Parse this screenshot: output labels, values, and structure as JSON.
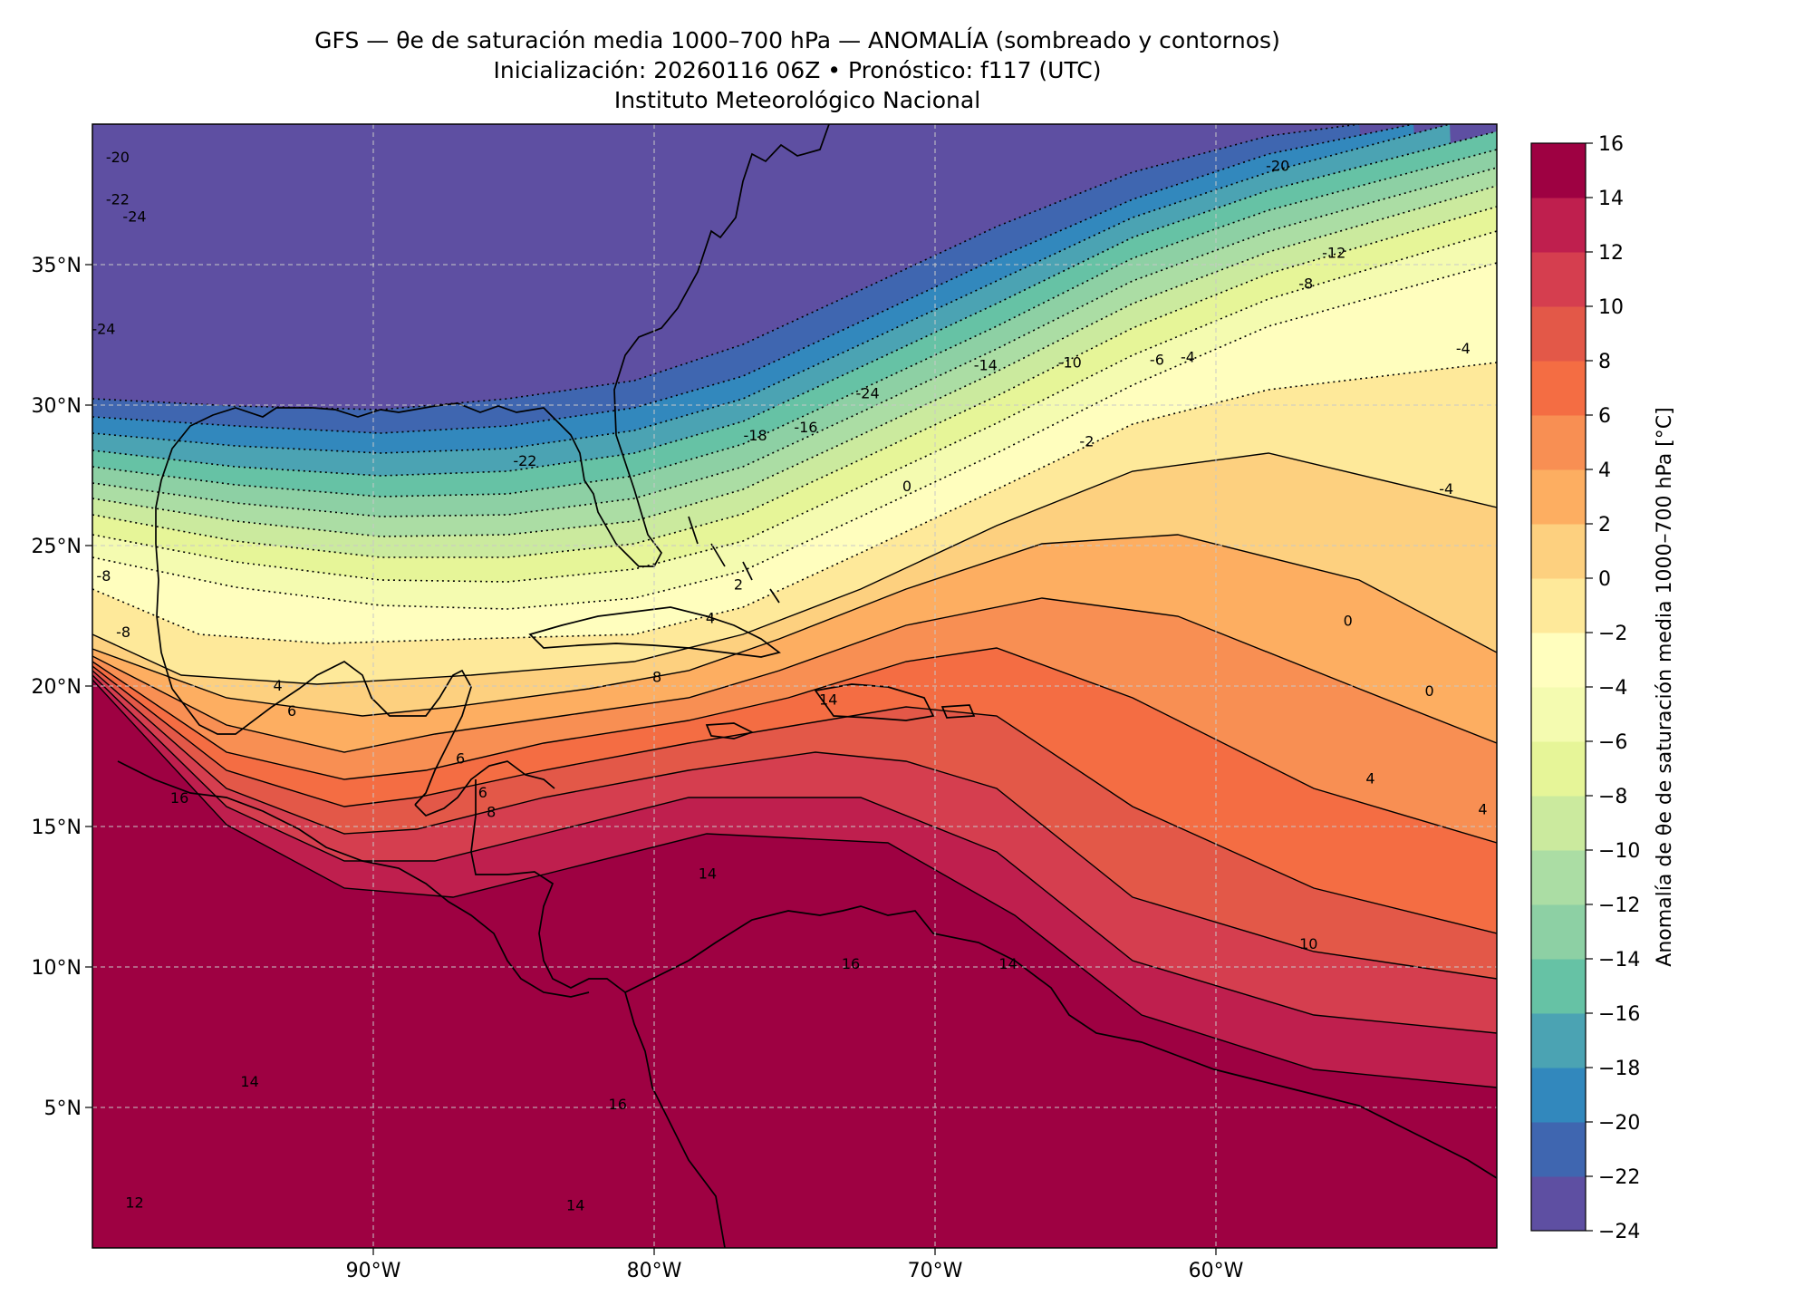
{
  "title": {
    "line1": "GFS — θe de saturación media 1000–700 hPa — ANOMALÍA (sombreado y contornos)",
    "line2": "Inicialización: 20260116 06Z   •   Pronóstico: f117 (UTC)",
    "line3": "Instituto Meteorológico Nacional"
  },
  "map": {
    "lon_range": [
      -100,
      -50
    ],
    "lat_range": [
      0,
      40
    ],
    "lon_ticks": [
      {
        "value": -90,
        "label": "90°W"
      },
      {
        "value": -80,
        "label": "80°W"
      },
      {
        "value": -70,
        "label": "70°W"
      },
      {
        "value": -60,
        "label": "60°W"
      }
    ],
    "lat_ticks": [
      {
        "value": 35,
        "label": "35°N"
      },
      {
        "value": 30,
        "label": "30°N"
      },
      {
        "value": 25,
        "label": "25°N"
      },
      {
        "value": 20,
        "label": "20°N"
      },
      {
        "value": 15,
        "label": "15°N"
      },
      {
        "value": 10,
        "label": "10°N"
      },
      {
        "value": 5,
        "label": "5°N"
      }
    ],
    "gridlines": true
  },
  "colorbar": {
    "label": "Anomalía de θe de saturación media 1000–700 hPa [°C]",
    "levels": [
      -24,
      -22,
      -20,
      -18,
      -16,
      -14,
      -12,
      -10,
      -8,
      -6,
      -4,
      -2,
      0,
      2,
      4,
      6,
      8,
      10,
      12,
      14,
      16
    ],
    "tick_labels": [
      "−24",
      "−22",
      "−20",
      "−18",
      "−16",
      "−14",
      "−12",
      "−10",
      "−8",
      "−6",
      "−4",
      "−2",
      "0",
      "2",
      "4",
      "6",
      "8",
      "10",
      "12",
      "14",
      "16"
    ],
    "colors": [
      "#5e4fa2",
      "#3f66b0",
      "#3288bd",
      "#4ba3b3",
      "#66c2a5",
      "#8dd0a4",
      "#abdda4",
      "#cbea9e",
      "#e6f598",
      "#f4fbb0",
      "#fffebe",
      "#fee99a",
      "#fdd07f",
      "#fdae61",
      "#f88f53",
      "#f46d43",
      "#e35848",
      "#d53e4f",
      "#bf1f4e",
      "#9e0142"
    ]
  },
  "contour_labels": [
    {
      "text": "-20",
      "lon": -99.1,
      "lat": 38.8
    },
    {
      "text": "-22",
      "lon": -99.1,
      "lat": 37.3
    },
    {
      "text": "-24",
      "lon": -98.5,
      "lat": 36.7
    },
    {
      "text": "-24",
      "lon": -99.6,
      "lat": 32.7
    },
    {
      "text": "-20",
      "lon": -57.8,
      "lat": 38.5
    },
    {
      "text": "-24",
      "lon": -72.4,
      "lat": 30.4
    },
    {
      "text": "-22",
      "lon": -84.6,
      "lat": 28.0
    },
    {
      "text": "-18",
      "lon": -76.4,
      "lat": 28.9
    },
    {
      "text": "-16",
      "lon": -74.6,
      "lat": 29.2
    },
    {
      "text": "-14",
      "lon": -68.2,
      "lat": 31.4
    },
    {
      "text": "-12",
      "lon": -55.8,
      "lat": 35.4
    },
    {
      "text": "-10",
      "lon": -65.2,
      "lat": 31.5
    },
    {
      "text": "-8",
      "lon": -56.8,
      "lat": 34.3
    },
    {
      "text": "-6",
      "lon": -62.1,
      "lat": 31.6
    },
    {
      "text": "-4",
      "lon": -61.0,
      "lat": 31.7
    },
    {
      "text": "-2",
      "lon": -64.6,
      "lat": 28.7
    },
    {
      "text": "-4",
      "lon": -51.2,
      "lat": 32.0
    },
    {
      "text": "-4",
      "lon": -51.8,
      "lat": 27.0
    },
    {
      "text": "0",
      "lon": -71.0,
      "lat": 27.1
    },
    {
      "text": "-8",
      "lon": -99.6,
      "lat": 23.9
    },
    {
      "text": "-8",
      "lon": -98.9,
      "lat": 21.9
    },
    {
      "text": "2",
      "lon": -77.0,
      "lat": 23.6
    },
    {
      "text": "4",
      "lon": -78.0,
      "lat": 22.4
    },
    {
      "text": "8",
      "lon": -79.9,
      "lat": 20.3
    },
    {
      "text": "4",
      "lon": -93.4,
      "lat": 20.0
    },
    {
      "text": "6",
      "lon": -92.9,
      "lat": 19.1
    },
    {
      "text": "6",
      "lon": -86.9,
      "lat": 17.4
    },
    {
      "text": "6",
      "lon": -86.1,
      "lat": 16.2
    },
    {
      "text": "8",
      "lon": -85.8,
      "lat": 15.5
    },
    {
      "text": "16",
      "lon": -96.9,
      "lat": 16.0
    },
    {
      "text": "14",
      "lon": -73.8,
      "lat": 19.5
    },
    {
      "text": "14",
      "lon": -78.1,
      "lat": 13.3
    },
    {
      "text": "16",
      "lon": -73.0,
      "lat": 10.1
    },
    {
      "text": "14",
      "lon": -67.4,
      "lat": 10.1
    },
    {
      "text": "10",
      "lon": -56.7,
      "lat": 10.8
    },
    {
      "text": "4",
      "lon": -54.5,
      "lat": 16.7
    },
    {
      "text": "4",
      "lon": -50.5,
      "lat": 15.6
    },
    {
      "text": "0",
      "lon": -52.4,
      "lat": 19.8
    },
    {
      "text": "0",
      "lon": -55.3,
      "lat": 22.3
    },
    {
      "text": "16",
      "lon": -81.3,
      "lat": 5.1
    },
    {
      "text": "14",
      "lon": -82.8,
      "lat": 1.5
    },
    {
      "text": "14",
      "lon": -94.4,
      "lat": 5.9
    },
    {
      "text": "12",
      "lon": -98.5,
      "lat": 1.6
    }
  ]
}
